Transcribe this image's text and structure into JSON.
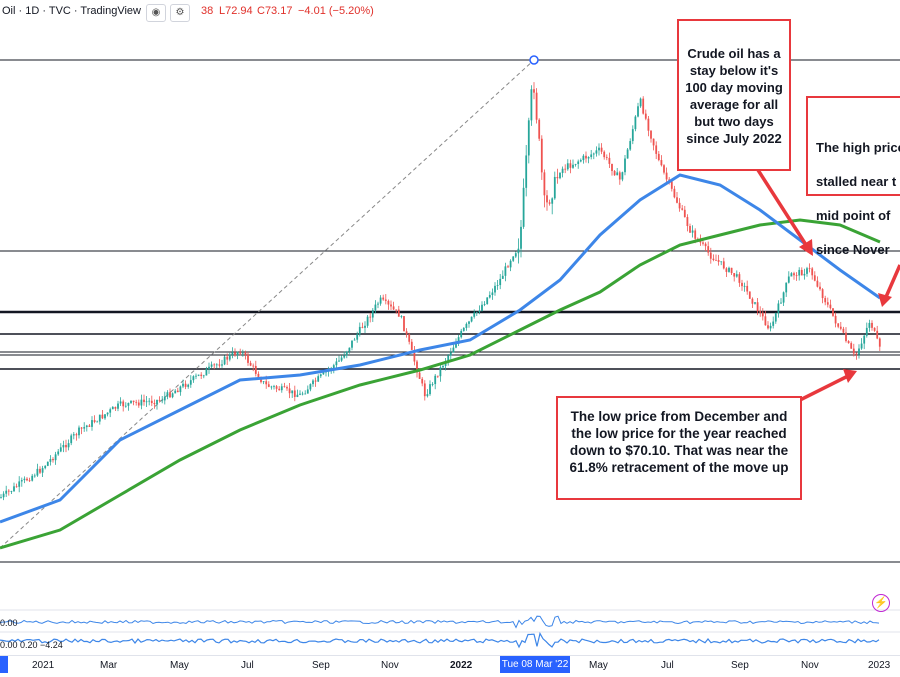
{
  "header": {
    "symbol": "Oil · 1D · TVC · TradingView",
    "eye_icon": "eye-icon",
    "settings_icon": "gear-icon",
    "ohlc_partial": "38",
    "low": "L72.94",
    "close": "C73.17",
    "change": "−4.01 (−5.20%)"
  },
  "annotations": {
    "moving_average_note": "Crude oil has a\nstay below it's\n100 day moving\naverage for all\nbut two days\nsince July 2022",
    "high_price_note": [
      "The high price",
      "stalled near t",
      "mid point of",
      "since Nover"
    ],
    "low_price_note": "The low price from December and\nthe low price for the year reached\ndown to $70.10. That was near the\n61.8% retracement of the move up"
  },
  "oscillators": {
    "osc1_value": "0.00",
    "osc2_values": "0.00  0.20  −4.24"
  },
  "time_axis": {
    "labels": [
      "2021",
      "Mar",
      "May",
      "Jul",
      "Sep",
      "Nov",
      "2022",
      "May",
      "Jul",
      "Sep",
      "Nov",
      "2023"
    ],
    "cursor_label": "Tue 08 Mar '22"
  },
  "chart_data": {
    "type": "candlestick",
    "title": "",
    "series": [
      {
        "name": "price",
        "values": "daily OHLC (approximate, synthetic)"
      },
      {
        "name": "100-day MA",
        "color": "#3d86e8"
      },
      {
        "name": "200-day MA",
        "color": "#3aa335"
      }
    ],
    "colors": {
      "up": "#26a69a",
      "down": "#ef5350",
      "ma100": "#3d86e8",
      "ma200": "#3aa335",
      "annotation": "#e8383d",
      "accent": "#2962ff"
    },
    "price_path_keypoints": [
      [
        0,
        498
      ],
      [
        40,
        470
      ],
      [
        80,
        430
      ],
      [
        120,
        405
      ],
      [
        160,
        400
      ],
      [
        200,
        375
      ],
      [
        240,
        350
      ],
      [
        265,
        385
      ],
      [
        300,
        395
      ],
      [
        340,
        360
      ],
      [
        380,
        300
      ],
      [
        400,
        315
      ],
      [
        425,
        395
      ],
      [
        460,
        335
      ],
      [
        500,
        280
      ],
      [
        520,
        240
      ],
      [
        533,
        75
      ],
      [
        545,
        210
      ],
      [
        560,
        170
      ],
      [
        580,
        160
      ],
      [
        600,
        150
      ],
      [
        620,
        180
      ],
      [
        640,
        100
      ],
      [
        660,
        165
      ],
      [
        690,
        230
      ],
      [
        710,
        255
      ],
      [
        740,
        280
      ],
      [
        770,
        330
      ],
      [
        790,
        275
      ],
      [
        810,
        270
      ],
      [
        835,
        320
      ],
      [
        855,
        358
      ],
      [
        870,
        320
      ],
      [
        880,
        350
      ]
    ],
    "ma100_keypoints": [
      [
        0,
        522
      ],
      [
        60,
        500
      ],
      [
        120,
        440
      ],
      [
        180,
        410
      ],
      [
        240,
        380
      ],
      [
        300,
        375
      ],
      [
        360,
        365
      ],
      [
        420,
        350
      ],
      [
        470,
        340
      ],
      [
        520,
        310
      ],
      [
        560,
        280
      ],
      [
        600,
        235
      ],
      [
        640,
        200
      ],
      [
        680,
        175
      ],
      [
        720,
        185
      ],
      [
        760,
        210
      ],
      [
        800,
        240
      ],
      [
        840,
        270
      ],
      [
        880,
        298
      ]
    ],
    "ma200_keypoints": [
      [
        0,
        548
      ],
      [
        60,
        530
      ],
      [
        120,
        495
      ],
      [
        180,
        460
      ],
      [
        240,
        430
      ],
      [
        300,
        405
      ],
      [
        360,
        385
      ],
      [
        420,
        370
      ],
      [
        470,
        355
      ],
      [
        520,
        330
      ],
      [
        560,
        310
      ],
      [
        600,
        292
      ],
      [
        640,
        265
      ],
      [
        680,
        245
      ],
      [
        720,
        235
      ],
      [
        760,
        225
      ],
      [
        800,
        220
      ],
      [
        840,
        225
      ],
      [
        880,
        242
      ]
    ]
  }
}
